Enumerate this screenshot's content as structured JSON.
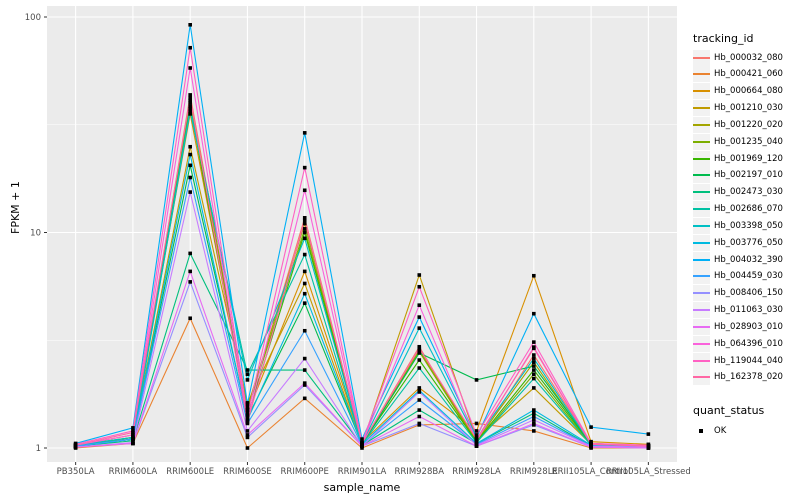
{
  "chart_data": {
    "type": "line",
    "title": "",
    "xlabel": "sample_name",
    "ylabel": "FPKM + 1",
    "y_scale": "log10",
    "y_ticks": [
      1,
      10,
      100
    ],
    "ylim": [
      1,
      110
    ],
    "grid": "on",
    "panel_bg": "#EBEBEB",
    "grid_color": "#FFFFFF",
    "tick_text_color": "#4D4D4D",
    "point_color": "#000000",
    "legend_position": "right",
    "legend_title": "tracking_id",
    "quant_legend_title": "quant_status",
    "quant_legend_items": [
      {
        "label": "OK",
        "shape": "square",
        "color": "#000000"
      }
    ],
    "categories": [
      "PB350LA",
      "RRIM600LA",
      "RRIM600LE",
      "RRIM600SE",
      "RRIM600PE",
      "RRIM901LA",
      "RRIM928BA",
      "RRIM928LA",
      "RRIM928LE",
      "RRII105LA_Control",
      "RRII105LA_Stressed"
    ],
    "series": [
      {
        "name": "Hb_000032_080",
        "color": "#F8766D",
        "values": [
          1.02,
          1.1,
          43.5,
          1.5,
          11.7,
          1.05,
          2.95,
          1.05,
          2.7,
          1.05,
          1.02
        ]
      },
      {
        "name": "Hb_000421_060",
        "color": "#EA8331",
        "values": [
          1.0,
          1.05,
          4.0,
          1.0,
          1.7,
          1.0,
          1.28,
          1.3,
          1.2,
          1.0,
          1.0
        ]
      },
      {
        "name": "Hb_000664_080",
        "color": "#D89000",
        "values": [
          1.03,
          1.15,
          35.5,
          1.45,
          6.6,
          1.06,
          1.9,
          1.2,
          6.3,
          1.07,
          1.04
        ]
      },
      {
        "name": "Hb_001210_030",
        "color": "#C09B00",
        "values": [
          1.02,
          1.12,
          25.0,
          1.62,
          5.8,
          1.04,
          6.35,
          1.1,
          1.9,
          1.04,
          1.02
        ]
      },
      {
        "name": "Hb_001220_020",
        "color": "#A3A500",
        "values": [
          1.02,
          1.1,
          41.0,
          1.55,
          11.0,
          1.04,
          2.85,
          1.08,
          2.5,
          1.03,
          1.02
        ]
      },
      {
        "name": "Hb_001235_040",
        "color": "#7CAE00",
        "values": [
          1.02,
          1.1,
          40.0,
          1.5,
          10.4,
          1.04,
          2.8,
          1.06,
          2.2,
          1.03,
          1.02
        ]
      },
      {
        "name": "Hb_001969_120",
        "color": "#39B600",
        "values": [
          1.03,
          1.12,
          38.5,
          1.4,
          10.0,
          1.05,
          2.56,
          1.07,
          2.3,
          1.04,
          1.02
        ]
      },
      {
        "name": "Hb_002197_010",
        "color": "#00BB4E",
        "values": [
          1.02,
          1.1,
          20.5,
          1.38,
          4.7,
          1.04,
          2.76,
          2.07,
          2.4,
          1.05,
          1.02
        ]
      },
      {
        "name": "Hb_002473_030",
        "color": "#00BF7D",
        "values": [
          1.02,
          1.08,
          8.0,
          2.3,
          2.3,
          1.03,
          1.5,
          1.05,
          1.45,
          1.02,
          1.01
        ]
      },
      {
        "name": "Hb_002686_070",
        "color": "#00C1A3",
        "values": [
          1.02,
          1.1,
          36.5,
          2.2,
          7.9,
          1.04,
          2.35,
          1.06,
          2.1,
          1.03,
          1.02
        ]
      },
      {
        "name": "Hb_003398_050",
        "color": "#00BFC4",
        "values": [
          1.03,
          1.12,
          37.5,
          2.07,
          9.4,
          1.05,
          3.6,
          1.1,
          2.6,
          1.04,
          1.02
        ]
      },
      {
        "name": "Hb_003776_050",
        "color": "#00BAE0",
        "values": [
          1.02,
          1.1,
          23.0,
          1.35,
          5.2,
          1.04,
          1.85,
          1.05,
          1.5,
          1.03,
          1.01
        ]
      },
      {
        "name": "Hb_004032_390",
        "color": "#00B0F6",
        "values": [
          1.05,
          1.24,
          92.0,
          1.6,
          29.0,
          1.1,
          4.05,
          1.12,
          4.2,
          1.25,
          1.16
        ]
      },
      {
        "name": "Hb_004459_030",
        "color": "#35A2FF",
        "values": [
          1.02,
          1.1,
          18.0,
          1.3,
          3.5,
          1.03,
          1.67,
          1.04,
          1.4,
          1.02,
          1.01
        ]
      },
      {
        "name": "Hb_008406_150",
        "color": "#9590FF",
        "values": [
          1.01,
          1.05,
          5.9,
          1.12,
          1.96,
          1.02,
          1.3,
          1.02,
          1.28,
          1.01,
          1.0
        ]
      },
      {
        "name": "Hb_011063_030",
        "color": "#C77CFF",
        "values": [
          1.01,
          1.06,
          15.4,
          1.2,
          2.6,
          1.02,
          1.82,
          1.03,
          1.35,
          1.02,
          1.01
        ]
      },
      {
        "name": "Hb_028903_010",
        "color": "#E76BF3",
        "values": [
          1.01,
          1.05,
          6.6,
          1.15,
          2.0,
          1.02,
          1.4,
          1.02,
          1.3,
          1.01,
          1.0
        ]
      },
      {
        "name": "Hb_064396_010",
        "color": "#FA62DB",
        "values": [
          1.03,
          1.15,
          58.0,
          1.35,
          15.7,
          1.05,
          4.6,
          1.08,
          2.94,
          1.04,
          1.02
        ]
      },
      {
        "name": "Hb_119044_040",
        "color": "#FF61C3",
        "values": [
          1.04,
          1.2,
          72.0,
          1.42,
          20.0,
          1.06,
          5.6,
          1.15,
          3.1,
          1.05,
          1.03
        ]
      },
      {
        "name": "Hb_162378_020",
        "color": "#FF67A4",
        "values": [
          1.03,
          1.18,
          42.0,
          1.32,
          11.4,
          1.05,
          2.9,
          1.1,
          2.9,
          1.04,
          1.02
        ]
      }
    ]
  }
}
